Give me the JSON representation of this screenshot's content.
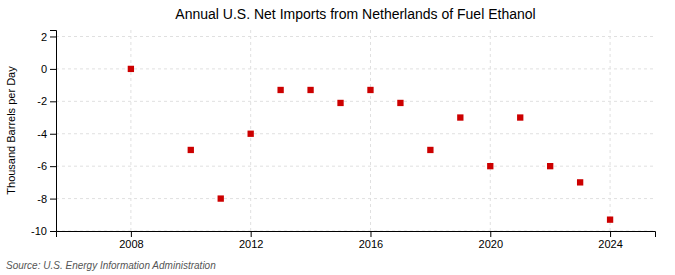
{
  "chart_data": {
    "type": "scatter",
    "title": "Annual U.S. Net Imports from Netherlands of Fuel Ethanol",
    "ylabel": "Thousand Barrels per Day",
    "annotations": [
      "Source: U.S. Energy Information Administration"
    ],
    "x": [
      2008,
      2010,
      2011,
      2012,
      2013,
      2014,
      2015,
      2016,
      2017,
      2018,
      2019,
      2020,
      2021,
      2022,
      2023,
      2024
    ],
    "values": [
      0.0,
      -5.0,
      -8.0,
      -4.0,
      -1.3,
      -1.3,
      -2.1,
      -1.3,
      -2.1,
      -5.0,
      -3.0,
      -6.0,
      -3.0,
      -6.0,
      -7.0,
      -9.3
    ],
    "color": "#cc0000",
    "marker": "square",
    "xlim": [
      2005.5,
      2025.5
    ],
    "ylim": [
      -10,
      2.4
    ],
    "xticks": [
      2008,
      2012,
      2016,
      2020,
      2024
    ],
    "yticks": [
      -10,
      -8,
      -6,
      -4,
      -2,
      0,
      2
    ],
    "grid": true
  }
}
